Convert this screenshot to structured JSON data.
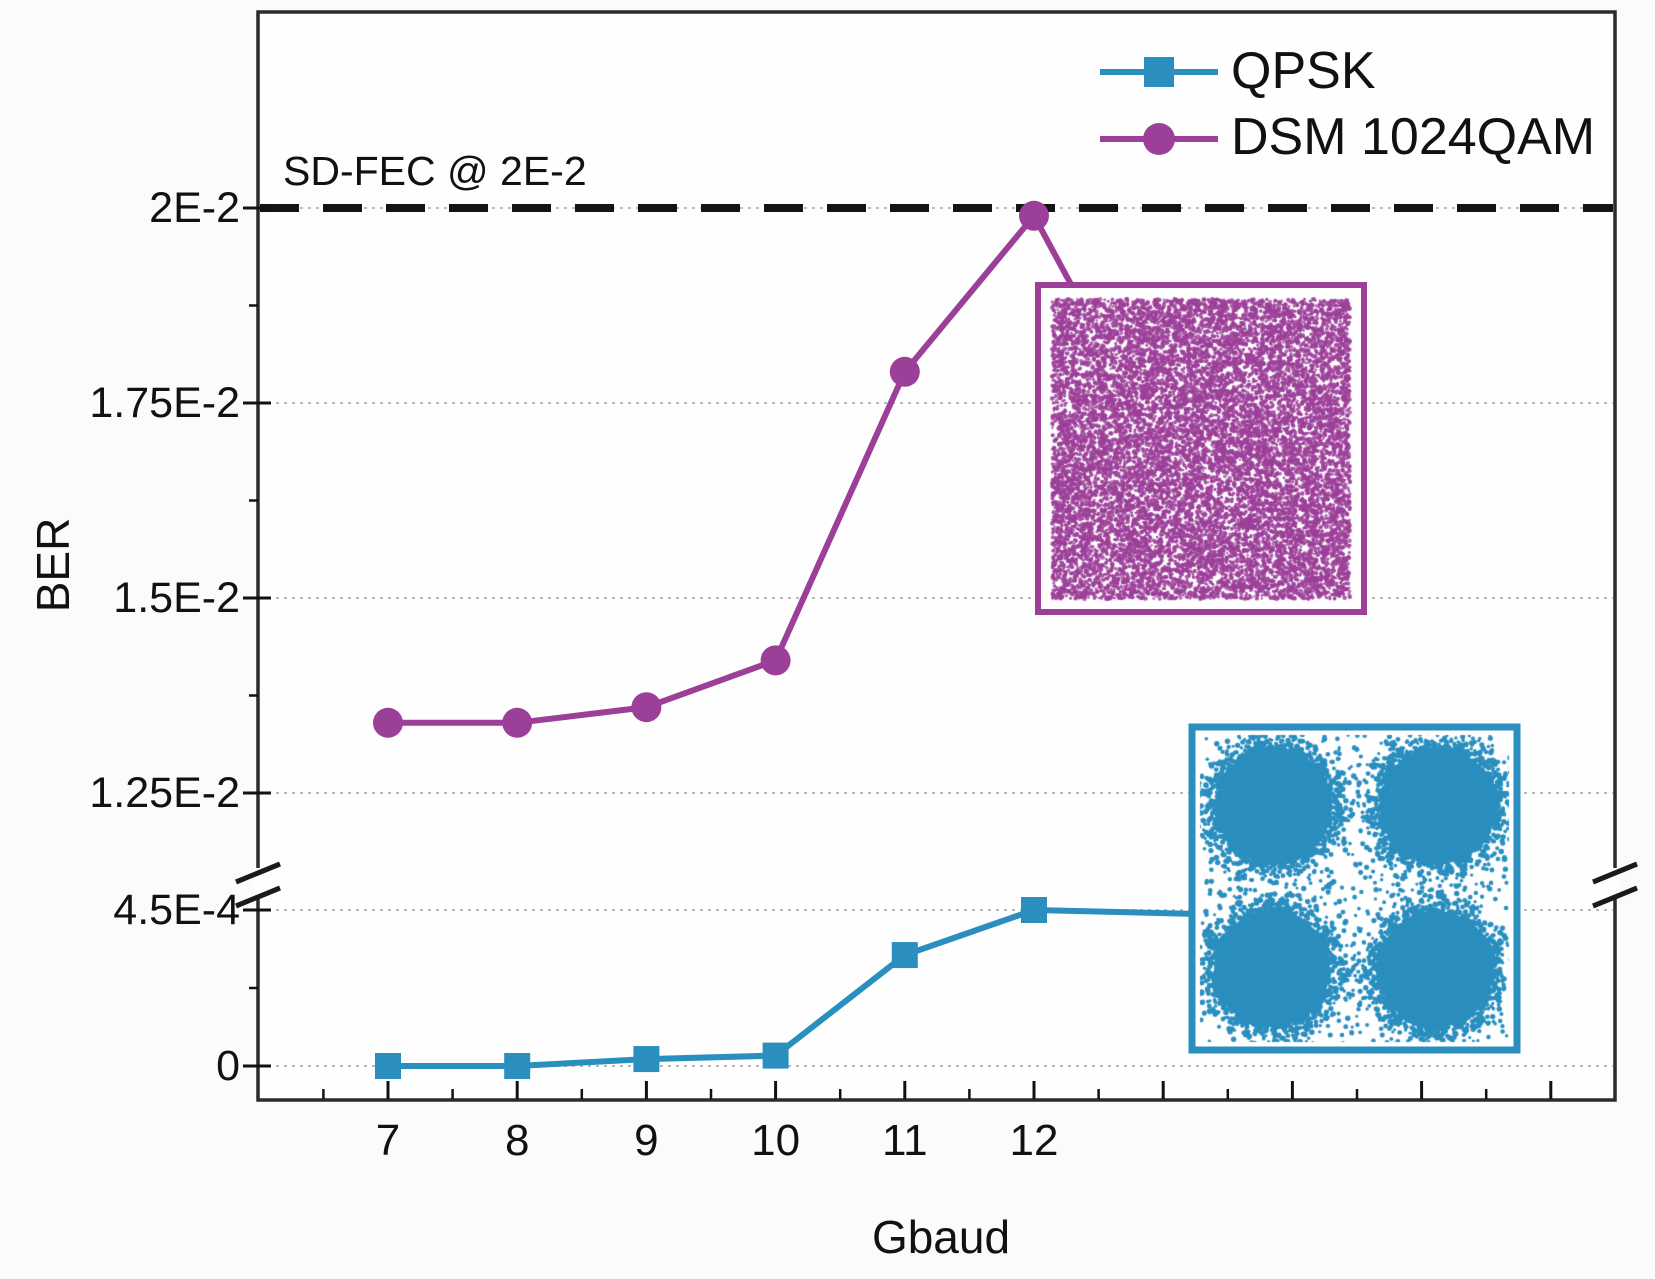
{
  "figure": {
    "xlabel": "Gbaud",
    "ylabel": "BER",
    "annotation_sdfec": "SD-FEC @ 2E-2"
  },
  "legend": {
    "position": "top-right",
    "items": [
      {
        "label": "QPSK",
        "marker": "square",
        "color": "#2a8fbf"
      },
      {
        "label": "DSM 1024QAM",
        "marker": "circle",
        "color": "#9c3f99"
      }
    ]
  },
  "colors": {
    "qpsk_blue": "#2a8fbf",
    "dsm_purple": "#9c3f99",
    "threshold_line": "#141414",
    "gridline": "#b9b9b9",
    "frame": "#2b2b2b"
  },
  "chart_data": {
    "type": "line",
    "title": "",
    "xlabel": "Gbaud",
    "ylabel": "BER",
    "x": [
      7,
      8,
      9,
      10,
      11,
      12
    ],
    "x_tick_labels": [
      "7",
      "8",
      "9",
      "10",
      "11",
      "12"
    ],
    "series": [
      {
        "name": "QPSK",
        "marker": "square",
        "color": "#2a8fbf",
        "values": [
          0,
          0,
          2e-05,
          3e-05,
          0.00032,
          0.00045
        ]
      },
      {
        "name": "DSM 1024QAM",
        "marker": "circle",
        "color": "#9c3f99",
        "values": [
          0.0134,
          0.0134,
          0.0136,
          0.0142,
          0.0179,
          0.0199
        ]
      }
    ],
    "threshold": {
      "label": "SD-FEC @ 2E-2",
      "value": 0.02,
      "style": "black dashed horizontal line"
    },
    "y_axis": {
      "broken": true,
      "upper_range": [
        0.0125,
        0.0205
      ],
      "lower_range": [
        0,
        0.00045
      ],
      "ticks": [
        {
          "label": "2E-2",
          "value": 0.02
        },
        {
          "label": "1.75E-2",
          "value": 0.0175
        },
        {
          "label": "1.5E-2",
          "value": 0.015
        },
        {
          "label": "1.25E-2",
          "value": 0.0125
        },
        {
          "label": "4.5E-4",
          "value": 0.00045
        },
        {
          "label": "0",
          "value": 0
        }
      ]
    },
    "grid": "dotted horizontal gridlines at every labeled y tick",
    "legend_position": "top-right inside frame",
    "insets": [
      {
        "name": "dsm-1024qam-constellation",
        "color": "#9c3f99",
        "description": "dense noise-like square scatter of 1024QAM symbols, connected to the 12 Gbaud DSM point"
      },
      {
        "name": "qpsk-constellation",
        "color": "#2a8fbf",
        "description": "four round symbol clusters of QPSK, connected to the 12 Gbaud QPSK point"
      }
    ]
  }
}
